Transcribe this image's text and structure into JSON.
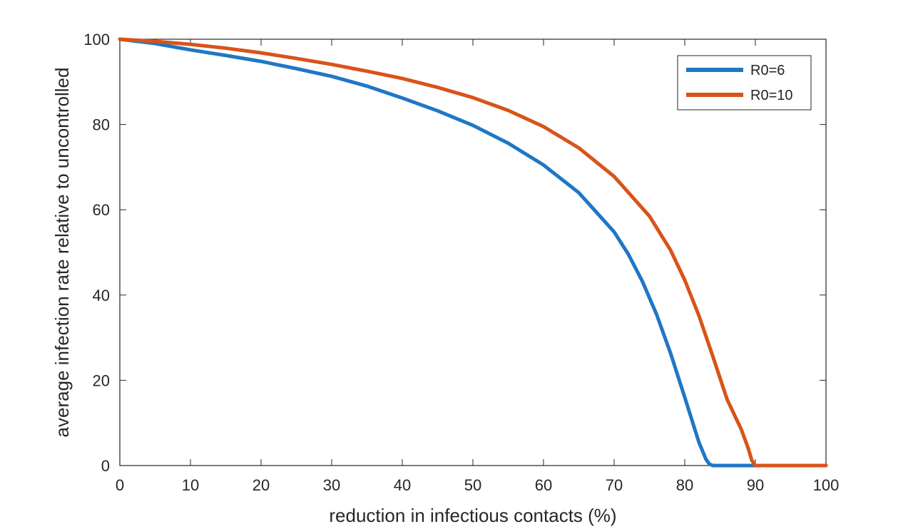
{
  "chart_data": {
    "type": "line",
    "xlabel": "reduction in infectious contacts (%)",
    "ylabel": "average infection rate relative to uncontrolled",
    "xlim": [
      0,
      100
    ],
    "ylim": [
      0,
      100
    ],
    "xticks": [
      "0",
      "10",
      "20",
      "30",
      "40",
      "50",
      "60",
      "70",
      "80",
      "90",
      "100"
    ],
    "yticks": [
      "0",
      "20",
      "40",
      "60",
      "80",
      "100"
    ],
    "grid": false,
    "legend_position": "top-right",
    "series": [
      {
        "name": "R0=6",
        "color": "#1f77c4",
        "x": [
          0,
          5,
          10,
          15,
          20,
          25,
          30,
          35,
          40,
          45,
          50,
          55,
          60,
          65,
          70,
          72,
          74,
          76,
          78,
          80,
          82,
          83,
          83.5,
          84,
          86,
          90,
          95,
          100
        ],
        "y": [
          100,
          99,
          97.5,
          96.2,
          94.8,
          93.1,
          91.3,
          89,
          86.2,
          83.2,
          79.8,
          75.6,
          70.5,
          64,
          54.8,
          49.6,
          43.2,
          35.5,
          26.3,
          16,
          5.5,
          1.5,
          0.3,
          0,
          0,
          0,
          0,
          0
        ]
      },
      {
        "name": "R0=10",
        "color": "#d95319",
        "x": [
          0,
          5,
          10,
          15,
          20,
          25,
          30,
          35,
          40,
          45,
          50,
          55,
          60,
          65,
          70,
          75,
          78,
          80,
          82,
          84,
          86,
          88,
          89,
          89.5,
          90,
          95,
          100
        ],
        "y": [
          100,
          99.5,
          98.8,
          97.9,
          96.8,
          95.5,
          94.1,
          92.5,
          90.8,
          88.7,
          86.3,
          83.3,
          79.5,
          74.5,
          67.8,
          58.5,
          50.5,
          43.5,
          35.2,
          25.5,
          15.5,
          8.5,
          4,
          1.2,
          0,
          0,
          0
        ]
      }
    ]
  }
}
